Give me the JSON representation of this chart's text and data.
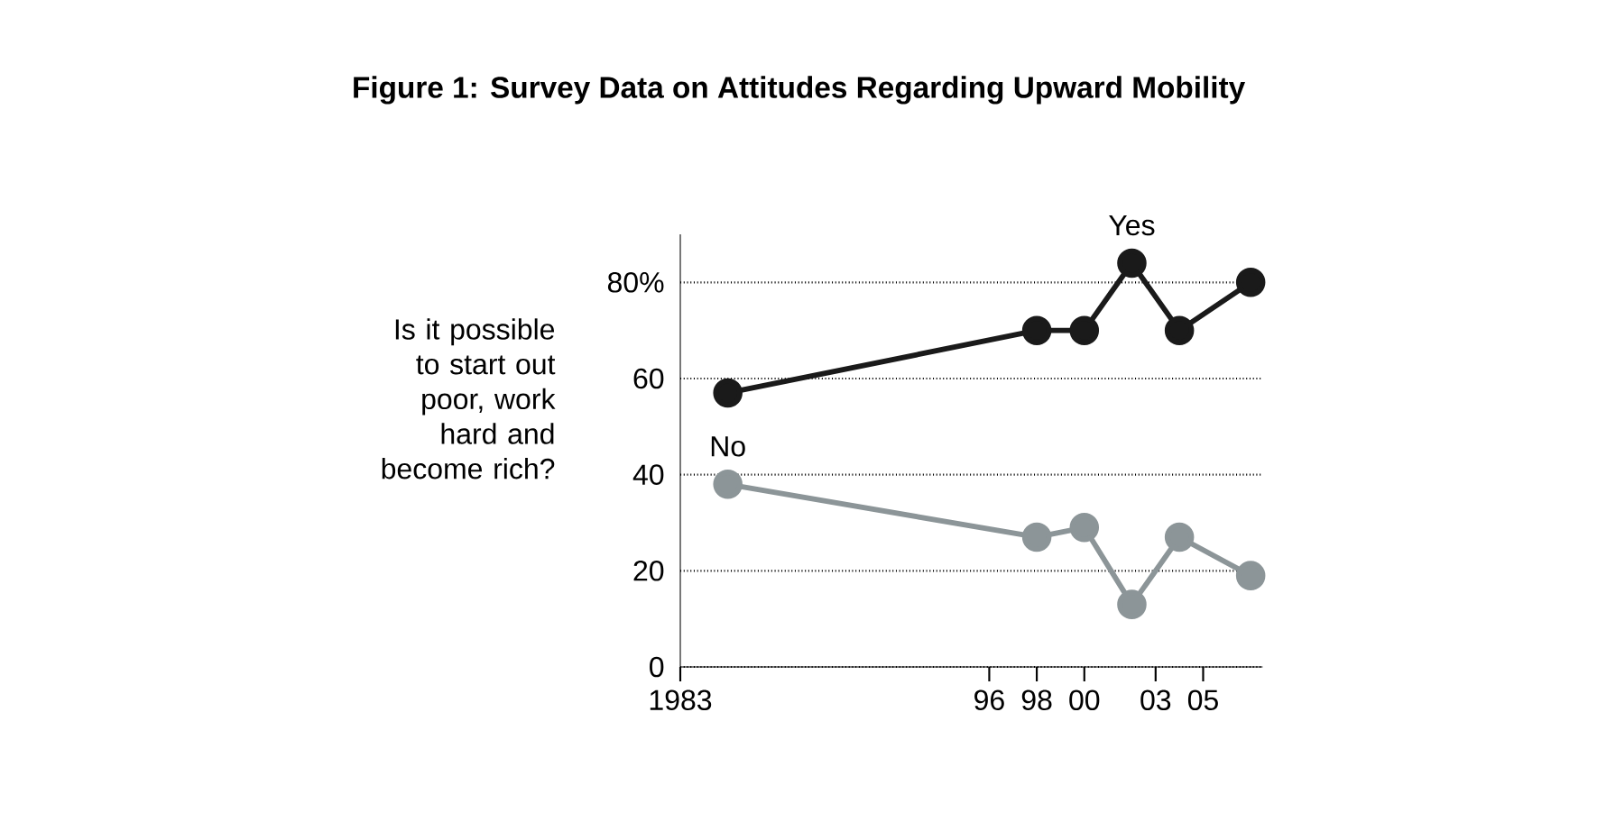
{
  "chart_data": {
    "type": "line",
    "title": "Figure 1: Survey Data on Attitudes Regarding Upward Mobility",
    "ylabel": "Is it possible to start out poor, work hard and become rich?",
    "x": [
      1985,
      1998,
      2000,
      2002,
      2004,
      2007
    ],
    "series": [
      {
        "name": "Yes",
        "color": "#1a1a1a",
        "values": [
          57,
          70,
          70,
          84,
          70,
          80
        ]
      },
      {
        "name": "No",
        "color": "#8c9598",
        "values": [
          38,
          27,
          29,
          13,
          27,
          19
        ]
      }
    ],
    "xlim": [
      1983,
      2007.5
    ],
    "xticks": [
      {
        "value": 1983,
        "label": "1983"
      },
      {
        "value": 1996,
        "label": "96"
      },
      {
        "value": 1998,
        "label": "98"
      },
      {
        "value": 2000,
        "label": "00"
      },
      {
        "value": 2003,
        "label": "03"
      },
      {
        "value": 2005,
        "label": "05"
      }
    ],
    "ylim": [
      0,
      90
    ],
    "yticks": [
      0,
      20,
      40,
      60,
      {
        "value": 80,
        "label": "80%"
      }
    ],
    "grid": "y",
    "marker": "circle",
    "line_style": "solid",
    "legend": false
  }
}
